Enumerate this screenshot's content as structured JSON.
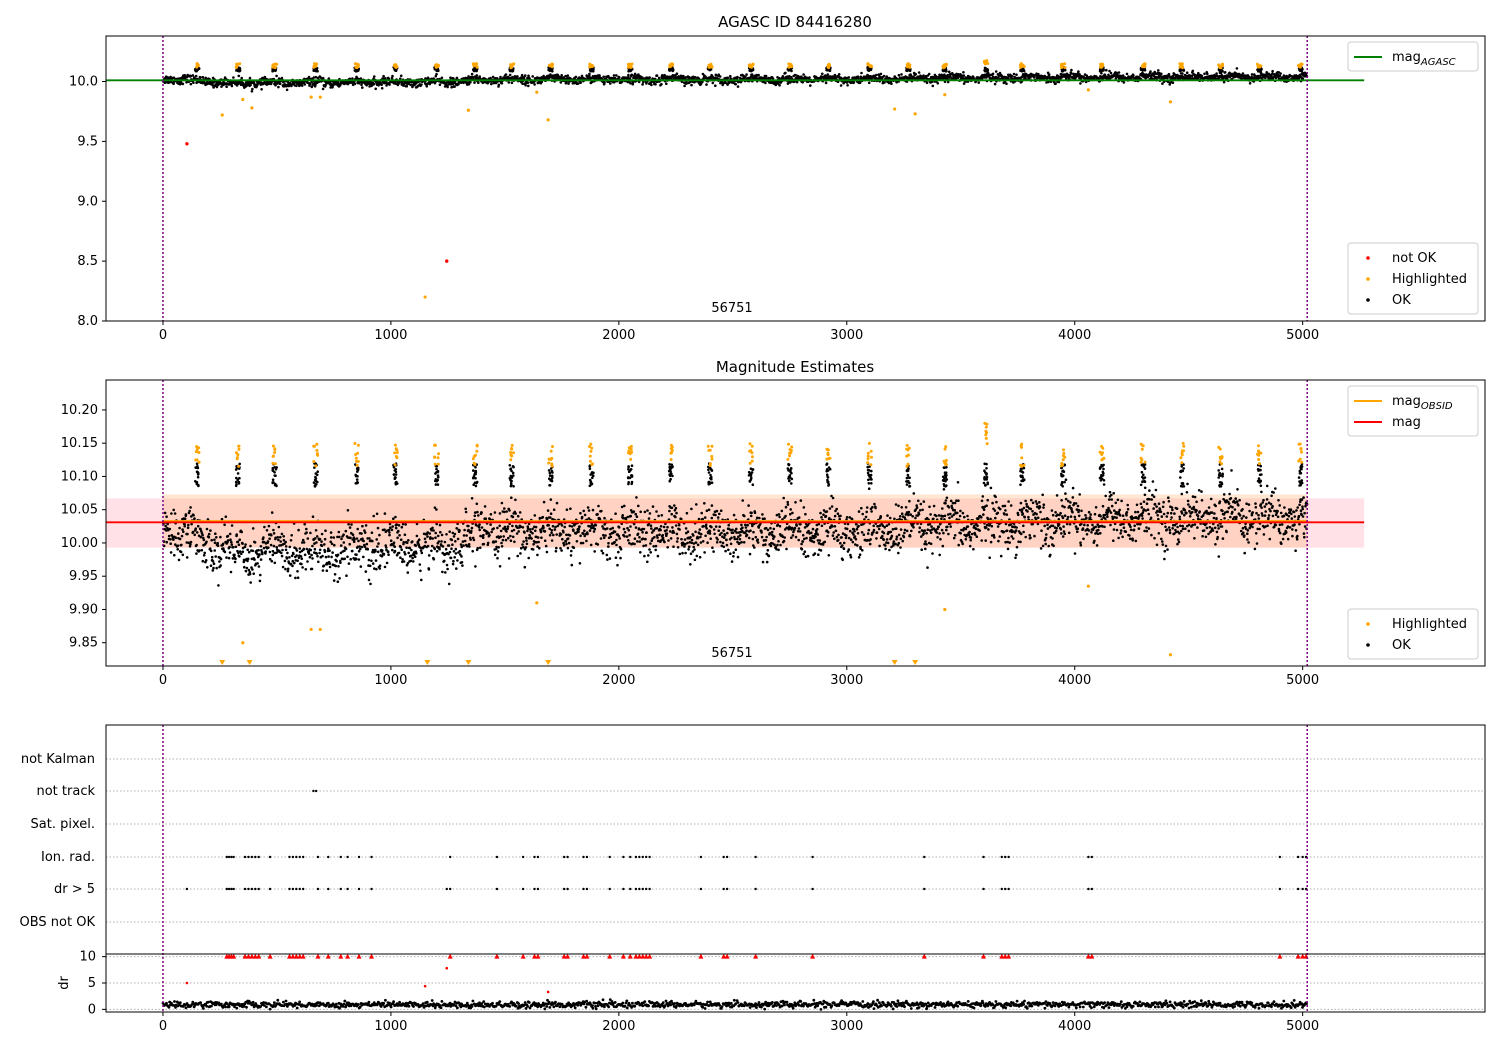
{
  "figure": {
    "title": "AGASC ID 84416280"
  },
  "chart_data": [
    {
      "type": "scatter",
      "title": "AGASC ID 84416280",
      "xlim": [
        -250,
        5800
      ],
      "ylim": [
        8.0,
        10.38
      ],
      "xticks": [
        0,
        1000,
        2000,
        3000,
        4000,
        5000
      ],
      "yticks": [
        8.0,
        8.5,
        9.0,
        9.5,
        10.0
      ],
      "ytick_format": 1,
      "grid": false,
      "obsid_label": "56751",
      "obsid_boundaries": [
        0,
        5020
      ],
      "reference_lines": [
        {
          "name": "mag",
          "sub": "AGASC",
          "value": 10.01,
          "x_range": [
            -250,
            5270
          ],
          "color": "#008000"
        }
      ],
      "legend_top": {
        "position": "top-right",
        "entries": [
          {
            "name": "mag",
            "sub": "AGASC",
            "kind": "line",
            "color": "#008000"
          }
        ]
      },
      "legend_bottom": {
        "position": "bottom-right",
        "entries": [
          {
            "name": "not OK",
            "kind": "dot",
            "color": "#ff0000"
          },
          {
            "name": "Highlighted",
            "kind": "dot",
            "color": "#ffa500"
          },
          {
            "name": "OK",
            "kind": "dot",
            "color": "#000000"
          }
        ]
      },
      "ok_series": {
        "name": "OK",
        "color": "#000000",
        "x_start": 0,
        "x_end": 5020,
        "count": 3000,
        "baseline": [
          [
            0,
            10.03
          ],
          [
            300,
            9.99
          ],
          [
            1300,
            10.0
          ],
          [
            1400,
            10.02
          ],
          [
            3000,
            10.02
          ],
          [
            4000,
            10.04
          ],
          [
            5020,
            10.04
          ]
        ],
        "spread": 0.018
      },
      "highlighted_clusters": [
        150,
        330,
        490,
        670,
        850,
        1020,
        1200,
        1370,
        1530,
        1700,
        1880,
        2050,
        2230,
        2400,
        2580,
        2750,
        2920,
        3100,
        3270,
        3430,
        3610,
        3770,
        3950,
        4120,
        4300,
        4470,
        4640,
        4810,
        4990
      ],
      "highlighted_points": [
        [
          260,
          9.72
        ],
        [
          350,
          9.85
        ],
        [
          390,
          9.78
        ],
        [
          650,
          9.87
        ],
        [
          690,
          9.87
        ],
        [
          1150,
          8.2
        ],
        [
          1340,
          9.76
        ],
        [
          1640,
          9.91
        ],
        [
          1690,
          9.68
        ],
        [
          3210,
          9.77
        ],
        [
          3300,
          9.73
        ],
        [
          3430,
          9.89
        ],
        [
          4060,
          9.93
        ],
        [
          4420,
          9.83
        ]
      ],
      "notok_points": [
        [
          105,
          9.48
        ],
        [
          1245,
          8.5
        ]
      ]
    },
    {
      "type": "scatter",
      "title": "Magnitude Estimates",
      "xlim": [
        -250,
        5800
      ],
      "ylim": [
        9.815,
        10.245
      ],
      "xticks": [
        0,
        1000,
        2000,
        3000,
        4000,
        5000
      ],
      "yticks": [
        9.85,
        9.9,
        9.95,
        10.0,
        10.05,
        10.1,
        10.15,
        10.2
      ],
      "ytick_format": 2,
      "grid": false,
      "obsid_label": "56751",
      "obsid_boundaries": [
        0,
        5020
      ],
      "bands": [
        {
          "y_range": [
            9.993,
            10.067
          ],
          "x_range": [
            -250,
            5270
          ],
          "color": "#ff9db0",
          "opacity": 0.3
        },
        {
          "y_range": [
            9.993,
            10.073
          ],
          "x_range": [
            0,
            5020
          ],
          "color": "#ffb070",
          "opacity": 0.3
        }
      ],
      "reference_lines": [
        {
          "name": "mag",
          "sub": "OBSID",
          "value": 10.033,
          "x_range": [
            0,
            5020
          ],
          "color": "#ffa500"
        },
        {
          "name": "mag",
          "sub": "",
          "value": 10.031,
          "x_range": [
            -250,
            5270
          ],
          "color": "#ff0000"
        }
      ],
      "legend_top": {
        "position": "top-right",
        "entries": [
          {
            "name": "mag",
            "sub": "OBSID",
            "kind": "line",
            "color": "#ffa500"
          },
          {
            "name": "mag",
            "sub": "",
            "kind": "line",
            "color": "#ff0000"
          }
        ]
      },
      "legend_bottom": {
        "position": "bottom-right",
        "entries": [
          {
            "name": "Highlighted",
            "kind": "dot",
            "color": "#ffa500"
          },
          {
            "name": "OK",
            "kind": "dot",
            "color": "#000000"
          }
        ]
      },
      "ok_series": {
        "name": "OK",
        "color": "#000000",
        "x_start": 0,
        "x_end": 5020,
        "count": 3000,
        "baseline": [
          [
            0,
            10.03
          ],
          [
            300,
            9.99
          ],
          [
            1300,
            10.0
          ],
          [
            1400,
            10.02
          ],
          [
            3000,
            10.02
          ],
          [
            4000,
            10.04
          ],
          [
            5020,
            10.04
          ]
        ],
        "spread": 0.018
      },
      "highlighted_clusters": [
        150,
        330,
        490,
        670,
        850,
        1020,
        1200,
        1370,
        1530,
        1700,
        1880,
        2050,
        2230,
        2400,
        2580,
        2750,
        2920,
        3100,
        3270,
        3430,
        3610,
        3770,
        3950,
        4120,
        4300,
        4470,
        4640,
        4810,
        4990
      ],
      "highlighted_points": [
        [
          350,
          9.85
        ],
        [
          650,
          9.87
        ],
        [
          690,
          9.87
        ],
        [
          1640,
          9.91
        ],
        [
          3430,
          9.9
        ],
        [
          4060,
          9.935
        ],
        [
          4420,
          9.832
        ]
      ],
      "clipped_markers": [
        260,
        380,
        1160,
        1340,
        1690,
        3210,
        3300
      ]
    },
    {
      "type": "scatter",
      "title": "",
      "xlim": [
        -250,
        5800
      ],
      "xticks": [
        0,
        1000,
        2000,
        3000,
        4000,
        5000
      ],
      "obsid_boundaries": [
        0,
        5020
      ],
      "flag_rows": [
        "not Kalman",
        "not track",
        "Sat. pixel.",
        "Ion. rad.",
        "dr > 5",
        "OBS not OK"
      ],
      "flag_points": {
        "not Kalman": [],
        "not track": [
          660,
          672
        ],
        "Sat. pixel.": [],
        "Ion. rad.": [
          280,
          290,
          300,
          310,
          360,
          375,
          390,
          405,
          420,
          470,
          555,
          570,
          585,
          600,
          615,
          680,
          725,
          780,
          810,
          860,
          915,
          1260,
          1465,
          1580,
          1630,
          1645,
          1760,
          1775,
          1845,
          1860,
          1960,
          2020,
          2050,
          2075,
          2090,
          2105,
          2120,
          2135,
          2360,
          2460,
          2475,
          2600,
          2850,
          3340,
          3600,
          3680,
          3695,
          3710,
          4060,
          4075,
          4900,
          4980,
          5000,
          5015
        ],
        "dr > 5": [
          105,
          280,
          290,
          300,
          310,
          360,
          375,
          390,
          405,
          420,
          470,
          555,
          570,
          585,
          600,
          615,
          680,
          725,
          780,
          810,
          860,
          915,
          1245,
          1260,
          1465,
          1580,
          1630,
          1645,
          1760,
          1775,
          1845,
          1860,
          1960,
          2020,
          2050,
          2075,
          2090,
          2105,
          2120,
          2135,
          2360,
          2460,
          2475,
          2600,
          2850,
          3340,
          3600,
          3680,
          3695,
          3710,
          4060,
          4075,
          4900,
          4980,
          5000,
          5015
        ],
        "OBS not OK": []
      },
      "dr_panel": {
        "ylabel": "dr",
        "ylim": [
          -0.5,
          10.5
        ],
        "yticks": [
          0,
          5,
          10
        ],
        "clipped_markers": [
          280,
          290,
          300,
          310,
          360,
          375,
          390,
          405,
          420,
          470,
          555,
          570,
          585,
          600,
          615,
          680,
          725,
          780,
          810,
          860,
          915,
          1260,
          1465,
          1580,
          1630,
          1645,
          1760,
          1775,
          1845,
          1860,
          1960,
          2020,
          2050,
          2075,
          2090,
          2105,
          2120,
          2135,
          2360,
          2460,
          2475,
          2600,
          2850,
          3340,
          3600,
          3680,
          3695,
          3710,
          4060,
          4075,
          4900,
          4980,
          5000,
          5015
        ],
        "outlier_points": [
          [
            105,
            5.0
          ],
          [
            1150,
            4.4
          ],
          [
            1245,
            7.8
          ],
          [
            1690,
            3.3
          ]
        ],
        "baseline_mean": 0.9,
        "baseline_spread": 0.6
      }
    }
  ]
}
